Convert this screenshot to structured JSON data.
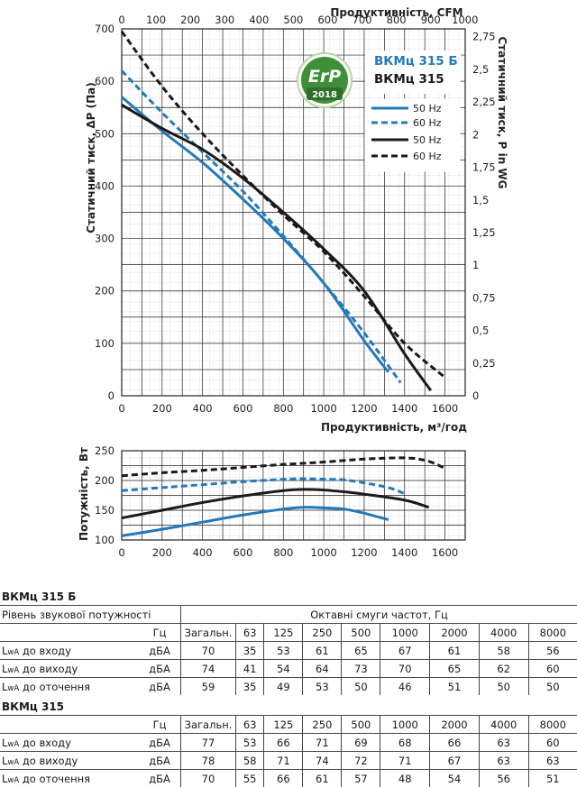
{
  "chart_data": [
    {
      "type": "line",
      "xlabel_bottom": "Продуктивність, м³/год",
      "xlabel_top": "Продуктивність, CFM",
      "ylabel_left": "Статичний тиск, ΔP (Па)",
      "ylabel_right": "Статичний тиск, P in WG",
      "xlim": [
        0,
        1700
      ],
      "ylim": [
        0,
        700
      ],
      "x_ticks": [
        "0",
        "200",
        "400",
        "600",
        "800",
        "1000",
        "1200",
        "1400",
        "1600"
      ],
      "x_top_ticks": [
        "0",
        "100",
        "200",
        "300",
        "400",
        "500",
        "600",
        "700",
        "800",
        "900",
        "1000"
      ],
      "y_ticks": [
        "0",
        "100",
        "200",
        "300",
        "400",
        "500",
        "600",
        "700"
      ],
      "y_right_ticks": [
        "0",
        "0,25",
        "0,5",
        "0,75",
        "1",
        "1,25",
        "1,5",
        "1,75",
        "2",
        "2,25",
        "2,5",
        "2,75"
      ],
      "models": [
        "ВКМц 315 Б",
        "ВКМц 315"
      ],
      "badge": {
        "text": "ErP",
        "year": "2018"
      },
      "series": [
        {
          "name": "50 Hz",
          "color": "#2479b9",
          "dash": false,
          "x": [
            0,
            200,
            400,
            600,
            800,
            1000,
            1200,
            1320
          ],
          "y": [
            570,
            505,
            445,
            375,
            300,
            215,
            105,
            45
          ]
        },
        {
          "name": "60 Hz",
          "color": "#2479b9",
          "dash": true,
          "x": [
            0,
            200,
            400,
            600,
            800,
            1000,
            1200,
            1380
          ],
          "y": [
            620,
            540,
            465,
            390,
            305,
            215,
            120,
            25
          ]
        },
        {
          "name": "50 Hz",
          "color": "#1a1a1a",
          "dash": false,
          "x": [
            0,
            200,
            400,
            600,
            800,
            1000,
            1200,
            1400,
            1530
          ],
          "y": [
            555,
            510,
            470,
            415,
            350,
            280,
            200,
            80,
            10
          ]
        },
        {
          "name": "60 Hz",
          "color": "#1a1a1a",
          "dash": true,
          "x": [
            0,
            200,
            400,
            600,
            800,
            1000,
            1200,
            1400,
            1600
          ],
          "y": [
            695,
            590,
            500,
            420,
            345,
            275,
            190,
            100,
            35
          ]
        }
      ]
    },
    {
      "type": "line",
      "ylabel": "Потужність, Вт",
      "xlim": [
        0,
        1700
      ],
      "ylim": [
        100,
        250
      ],
      "x_ticks": [
        "0",
        "200",
        "400",
        "600",
        "800",
        "1000",
        "1200",
        "1400",
        "1600"
      ],
      "y_ticks": [
        "100",
        "150",
        "200",
        "250"
      ],
      "series": [
        {
          "color": "#2479b9",
          "dash": false,
          "x": [
            0,
            200,
            400,
            600,
            800,
            900,
            1000,
            1100,
            1200,
            1320
          ],
          "y": [
            107,
            118,
            130,
            142,
            152,
            155,
            154,
            152,
            145,
            134
          ]
        },
        {
          "color": "#2479b9",
          "dash": true,
          "x": [
            0,
            200,
            400,
            600,
            800,
            900,
            1000,
            1100,
            1200,
            1320,
            1400
          ],
          "y": [
            183,
            188,
            193,
            198,
            202,
            203,
            202,
            201,
            196,
            188,
            178
          ]
        },
        {
          "color": "#1a1a1a",
          "dash": false,
          "x": [
            0,
            200,
            400,
            600,
            800,
            900,
            1000,
            1100,
            1200,
            1400,
            1520
          ],
          "y": [
            137,
            150,
            163,
            174,
            183,
            185,
            184,
            181,
            177,
            167,
            155
          ]
        },
        {
          "color": "#1a1a1a",
          "dash": true,
          "x": [
            0,
            200,
            400,
            600,
            800,
            1000,
            1200,
            1400,
            1500,
            1560,
            1600
          ],
          "y": [
            208,
            213,
            217,
            222,
            227,
            231,
            236,
            238,
            234,
            227,
            220
          ]
        }
      ]
    }
  ],
  "table1": {
    "title": "ВКМц 315 Б",
    "sound_power_label": "Рівень звукової потужності",
    "octave_label": "Октавні смуги частот, Гц",
    "hz": "Гц",
    "total": "Загальн.",
    "bands": [
      "63",
      "125",
      "250",
      "500",
      "1000",
      "2000",
      "4000",
      "8000"
    ],
    "rows": [
      {
        "label": "до входу",
        "unit": "дБА",
        "total": "70",
        "values": [
          "35",
          "53",
          "61",
          "65",
          "67",
          "61",
          "58",
          "56"
        ]
      },
      {
        "label": "до виходу",
        "unit": "дБА",
        "total": "74",
        "values": [
          "41",
          "54",
          "64",
          "73",
          "70",
          "65",
          "62",
          "60"
        ]
      },
      {
        "label": "до оточення",
        "unit": "дБА",
        "total": "59",
        "values": [
          "35",
          "49",
          "53",
          "50",
          "46",
          "51",
          "50",
          "50"
        ]
      }
    ]
  },
  "table2": {
    "title": "ВКМц 315",
    "hz": "Гц",
    "total": "Загальн.",
    "bands": [
      "63",
      "125",
      "250",
      "500",
      "1000",
      "2000",
      "4000",
      "8000"
    ],
    "rows": [
      {
        "label": "до входу",
        "unit": "дБА",
        "total": "77",
        "values": [
          "53",
          "66",
          "71",
          "69",
          "68",
          "66",
          "63",
          "60"
        ]
      },
      {
        "label": "до виходу",
        "unit": "дБА",
        "total": "78",
        "values": [
          "58",
          "71",
          "74",
          "72",
          "71",
          "67",
          "63",
          "63"
        ]
      },
      {
        "label": "до оточення",
        "unit": "дБА",
        "total": "70",
        "values": [
          "55",
          "66",
          "61",
          "57",
          "48",
          "54",
          "56",
          "51"
        ]
      }
    ]
  },
  "lwa": "L",
  "lwa_sub": "wA"
}
